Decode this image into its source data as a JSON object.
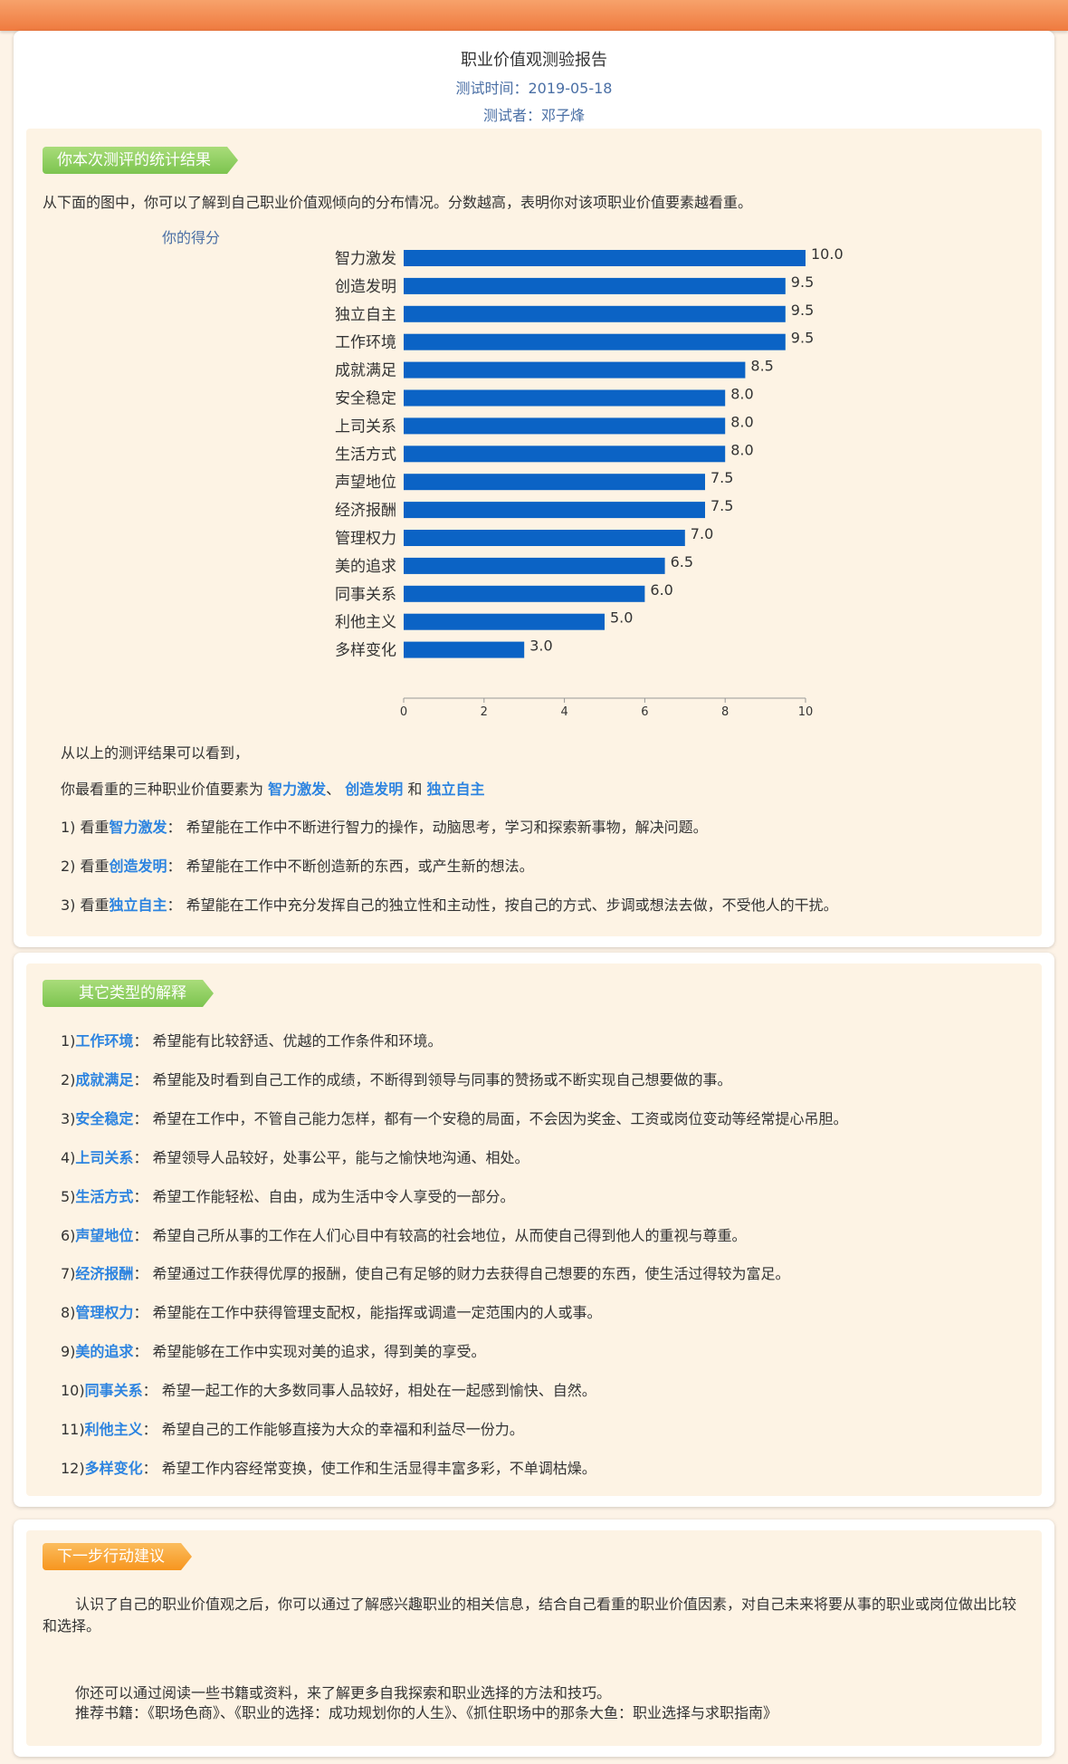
{
  "header": {
    "title": "职业价值观测验报告",
    "test_time": "测试时间：2019-05-18",
    "tester": "测试者：邓子烽"
  },
  "section1": {
    "tag": "你本次测评的统计结果",
    "intro": "从下面的图中，你可以了解到自己职业价值观倾向的分布情况。分数越高，表明你对该项职业价值要素越看重。",
    "summary_line1": "从以上的测评结果可以看到，",
    "summary_prefix": "你最看重的三种职业价值要素为",
    "top1": "智力激发",
    "sep1": "、",
    "top2": "创造发明",
    "and": "和",
    "top3": "独立自主",
    "details": [
      {
        "prefix": "1) 看重",
        "name": "智力激发",
        "text": "：  希望能在工作中不断进行智力的操作，动脑思考，学习和探索新事物，解决问题。"
      },
      {
        "prefix": "2) 看重",
        "name": "创造发明",
        "text": "：  希望能在工作中不断创造新的东西，或产生新的想法。"
      },
      {
        "prefix": "3) 看重",
        "name": "独立自主",
        "text": "：  希望能在工作中充分发挥自己的独立性和主动性，按自己的方式、步调或想法去做，不受他人的干扰。"
      }
    ]
  },
  "chart_data": {
    "type": "bar",
    "orientation": "horizontal",
    "title": "你的得分",
    "categories": [
      "智力激发",
      "创造发明",
      "独立自主",
      "工作环境",
      "成就满足",
      "安全稳定",
      "上司关系",
      "生活方式",
      "声望地位",
      "经济报酬",
      "管理权力",
      "美的追求",
      "同事关系",
      "利他主义",
      "多样变化"
    ],
    "values": [
      10.0,
      9.5,
      9.5,
      9.5,
      8.5,
      8.0,
      8.0,
      8.0,
      7.5,
      7.5,
      7.0,
      6.5,
      6.0,
      5.0,
      3.0
    ],
    "value_labels": [
      "10.0",
      "9.5",
      "9.5",
      "9.5",
      "8.5",
      "8.0",
      "8.0",
      "8.0",
      "7.5",
      "7.5",
      "7.0",
      "6.5",
      "6.0",
      "5.0",
      "3.0"
    ],
    "xticks": [
      "0",
      "2",
      "4",
      "6",
      "8",
      "10"
    ],
    "xlim": [
      0,
      10
    ],
    "bar_color": "#0b63c5",
    "grid": false
  },
  "section2": {
    "tag": "其它类型的解释",
    "items": [
      {
        "prefix": "1)",
        "name": "工作环境",
        "text": "：  希望能有比较舒适、优越的工作条件和环境。"
      },
      {
        "prefix": "2)",
        "name": "成就满足",
        "text": "：  希望能及时看到自己工作的成绩，不断得到领导与同事的赞扬或不断实现自己想要做的事。"
      },
      {
        "prefix": "3)",
        "name": "安全稳定",
        "text": "：  希望在工作中，不管自己能力怎样，都有一个安稳的局面，不会因为奖金、工资或岗位变动等经常提心吊胆。"
      },
      {
        "prefix": "4)",
        "name": "上司关系",
        "text": "：  希望领导人品较好，处事公平，能与之愉快地沟通、相处。"
      },
      {
        "prefix": "5)",
        "name": "生活方式",
        "text": "：  希望工作能轻松、自由，成为生活中令人享受的一部分。"
      },
      {
        "prefix": "6)",
        "name": "声望地位",
        "text": "：  希望自己所从事的工作在人们心目中有较高的社会地位，从而使自己得到他人的重视与尊重。"
      },
      {
        "prefix": "7)",
        "name": "经济报酬",
        "text": "：  希望通过工作获得优厚的报酬，使自己有足够的财力去获得自己想要的东西，使生活过得较为富足。"
      },
      {
        "prefix": "8)",
        "name": "管理权力",
        "text": "：  希望能在工作中获得管理支配权，能指挥或调遣一定范围内的人或事。"
      },
      {
        "prefix": "9)",
        "name": "美的追求",
        "text": "：  希望能够在工作中实现对美的追求，得到美的享受。"
      },
      {
        "prefix": "10)",
        "name": "同事关系",
        "text": "：  希望一起工作的大多数同事人品较好，相处在一起感到愉快、自然。"
      },
      {
        "prefix": "11)",
        "name": "利他主义",
        "text": "：  希望自己的工作能够直接为大众的幸福和利益尽一份力。"
      },
      {
        "prefix": "12)",
        "name": "多样变化",
        "text": "：  希望工作内容经常变换，使工作和生活显得丰富多彩，不单调枯燥。"
      }
    ]
  },
  "section3": {
    "tag": "下一步行动建议",
    "para1": "认识了自己的职业价值观之后，你可以通过了解感兴趣职业的相关信息，结合自己看重的职业价值因素，对自己未来将要从事的职业或岗位做出比较和选择。",
    "para2": "你还可以通过阅读一些书籍或资料，来了解更多自我探索和职业选择的方法和技巧。",
    "para3": "推荐书籍：《职场色商》、《职业的选择：成功规划你的人生》、《抓住职场中的那条大鱼：职业选择与求职指南》"
  }
}
